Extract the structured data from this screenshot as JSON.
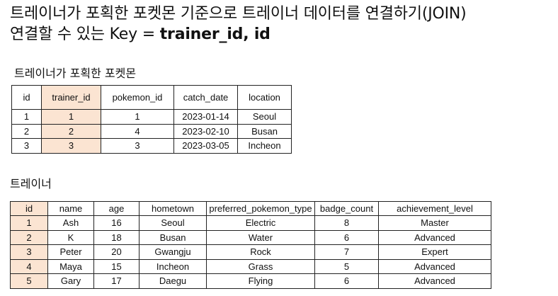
{
  "header": {
    "title_line1": "트레이너가 포획한 포켓몬 기준으로 트레이너 데이터를 연결하기(JOIN)",
    "title_line2_prefix": "연결할 수 있는 Key = ",
    "title_line2_key": "trainer_id, id"
  },
  "table1": {
    "caption": "트레이너가 포획한 포켓몬",
    "columns": [
      "id",
      "trainer_id",
      "pokemon_id",
      "catch_date",
      "location"
    ],
    "rows": [
      [
        "1",
        "1",
        "1",
        "2023-01-14",
        "Seoul"
      ],
      [
        "2",
        "2",
        "4",
        "2023-02-10",
        "Busan"
      ],
      [
        "3",
        "3",
        "3",
        "2023-03-05",
        "Incheon"
      ]
    ],
    "highlight_color": "#fbe4d2"
  },
  "table2": {
    "caption": "트레이너",
    "columns": [
      "id",
      "name",
      "age",
      "hometown",
      "preferred_pokemon_type",
      "badge_count",
      "achievement_level"
    ],
    "rows": [
      [
        "1",
        "Ash",
        "16",
        "Seoul",
        "Electric",
        "8",
        "Master"
      ],
      [
        "2",
        "K",
        "18",
        "Busan",
        "Water",
        "6",
        "Advanced"
      ],
      [
        "3",
        "Peter",
        "20",
        "Gwangju",
        "Rock",
        "7",
        "Expert"
      ],
      [
        "4",
        "Maya",
        "15",
        "Incheon",
        "Grass",
        "5",
        "Advanced"
      ],
      [
        "5",
        "Gary",
        "17",
        "Daegu",
        "Flying",
        "6",
        "Advanced"
      ]
    ],
    "highlight_color": "#fbe4d2"
  }
}
